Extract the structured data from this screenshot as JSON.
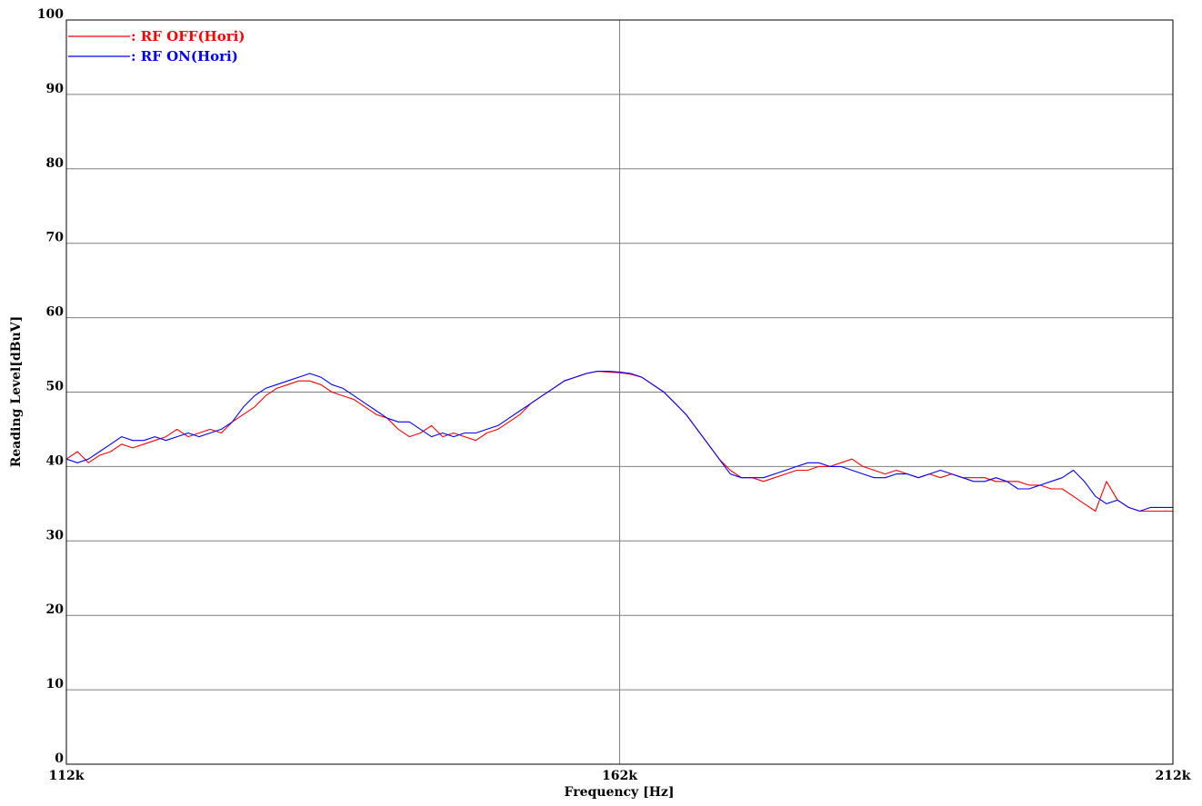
{
  "chart_data": {
    "type": "line",
    "xlabel": "Frequency [Hz]",
    "ylabel": "Reading Level[dBuV]",
    "x_unit": "kHz",
    "xlim": [
      112,
      212
    ],
    "ylim": [
      0,
      100
    ],
    "x_ticks": [
      {
        "value": 112,
        "label": "112k"
      },
      {
        "value": 162,
        "label": "162k"
      },
      {
        "value": 212,
        "label": "212k"
      }
    ],
    "y_ticks": [
      {
        "value": 0,
        "label": "0"
      },
      {
        "value": 10,
        "label": "10"
      },
      {
        "value": 20,
        "label": "20"
      },
      {
        "value": 30,
        "label": "30"
      },
      {
        "value": 40,
        "label": "40"
      },
      {
        "value": 50,
        "label": "50"
      },
      {
        "value": 60,
        "label": "60"
      },
      {
        "value": 70,
        "label": "70"
      },
      {
        "value": 80,
        "label": "80"
      },
      {
        "value": 90,
        "label": "90"
      },
      {
        "value": 100,
        "label": "100"
      }
    ],
    "grid": true,
    "legend_position": "top-left",
    "series": [
      {
        "name": ": RF OFF(Hori)",
        "color": "#ff0000",
        "x": [
          112,
          113,
          114,
          115,
          116,
          117,
          118,
          119,
          120,
          121,
          122,
          123,
          124,
          125,
          126,
          127,
          128,
          129,
          130,
          131,
          132,
          133,
          134,
          135,
          136,
          137,
          138,
          139,
          140,
          141,
          142,
          143,
          144,
          145,
          146,
          147,
          148,
          149,
          150,
          151,
          152,
          153,
          154,
          155,
          156,
          157,
          158,
          159,
          160,
          161,
          162,
          163,
          164,
          165,
          166,
          167,
          168,
          169,
          170,
          171,
          172,
          173,
          174,
          175,
          176,
          177,
          178,
          179,
          180,
          181,
          182,
          183,
          184,
          185,
          186,
          187,
          188,
          189,
          190,
          191,
          192,
          193,
          194,
          195,
          196,
          197,
          198,
          199,
          200,
          201,
          202,
          203,
          204,
          205,
          206,
          207,
          208,
          209,
          210,
          211,
          212
        ],
        "y": [
          41,
          42,
          40.5,
          41.5,
          42,
          43,
          42.5,
          43,
          43.5,
          44,
          45,
          44,
          44.5,
          45,
          44.5,
          46,
          47,
          48,
          49.5,
          50.5,
          51,
          51.5,
          51.5,
          51,
          50,
          49.5,
          49,
          48,
          47,
          46.5,
          45,
          44,
          44.5,
          45.5,
          44,
          44.5,
          44,
          43.5,
          44.5,
          45,
          46,
          47,
          48.5,
          49.5,
          50.5,
          51.5,
          52,
          52.5,
          52.8,
          52.7,
          52.6,
          52.4,
          52,
          51,
          50,
          48.5,
          47,
          45,
          43,
          41,
          39.5,
          38.5,
          38.5,
          38,
          38.5,
          39,
          39.5,
          39.5,
          40,
          40,
          40.5,
          41,
          40,
          39.5,
          39,
          39.5,
          39,
          38.5,
          39,
          38.5,
          39,
          38.5,
          38.5,
          38.5,
          38,
          38,
          38,
          37.5,
          37.5,
          37,
          37,
          36,
          35,
          34,
          38,
          35.5,
          34.5,
          34,
          34,
          34,
          34
        ]
      },
      {
        "name": ": RF ON(Hori)",
        "color": "#0000ff",
        "x": [
          112,
          113,
          114,
          115,
          116,
          117,
          118,
          119,
          120,
          121,
          122,
          123,
          124,
          125,
          126,
          127,
          128,
          129,
          130,
          131,
          132,
          133,
          134,
          135,
          136,
          137,
          138,
          139,
          140,
          141,
          142,
          143,
          144,
          145,
          146,
          147,
          148,
          149,
          150,
          151,
          152,
          153,
          154,
          155,
          156,
          157,
          158,
          159,
          160,
          161,
          162,
          163,
          164,
          165,
          166,
          167,
          168,
          169,
          170,
          171,
          172,
          173,
          174,
          175,
          176,
          177,
          178,
          179,
          180,
          181,
          182,
          183,
          184,
          185,
          186,
          187,
          188,
          189,
          190,
          191,
          192,
          193,
          194,
          195,
          196,
          197,
          198,
          199,
          200,
          201,
          202,
          203,
          204,
          205,
          206,
          207,
          208,
          209,
          210,
          211,
          212
        ],
        "y": [
          41,
          40.5,
          41,
          42,
          43,
          44,
          43.5,
          43.5,
          44,
          43.5,
          44,
          44.5,
          44,
          44.5,
          45,
          46,
          48,
          49.5,
          50.5,
          51,
          51.5,
          52,
          52.5,
          52,
          51,
          50.5,
          49.5,
          48.5,
          47.5,
          46.5,
          46,
          46,
          45,
          44,
          44.5,
          44,
          44.5,
          44.5,
          45,
          45.5,
          46.5,
          47.5,
          48.5,
          49.5,
          50.5,
          51.5,
          52,
          52.5,
          52.8,
          52.8,
          52.7,
          52.5,
          52,
          51,
          50,
          48.5,
          47,
          45,
          43,
          41,
          39,
          38.5,
          38.5,
          38.5,
          39,
          39.5,
          40,
          40.5,
          40.5,
          40,
          40,
          39.5,
          39,
          38.5,
          38.5,
          39,
          39,
          38.5,
          39,
          39.5,
          39,
          38.5,
          38,
          38,
          38.5,
          38,
          37,
          37,
          37.5,
          38,
          38.5,
          39.5,
          38,
          36,
          35,
          35.5,
          34.5,
          34,
          34.5,
          34.5,
          34.5
        ]
      }
    ]
  }
}
